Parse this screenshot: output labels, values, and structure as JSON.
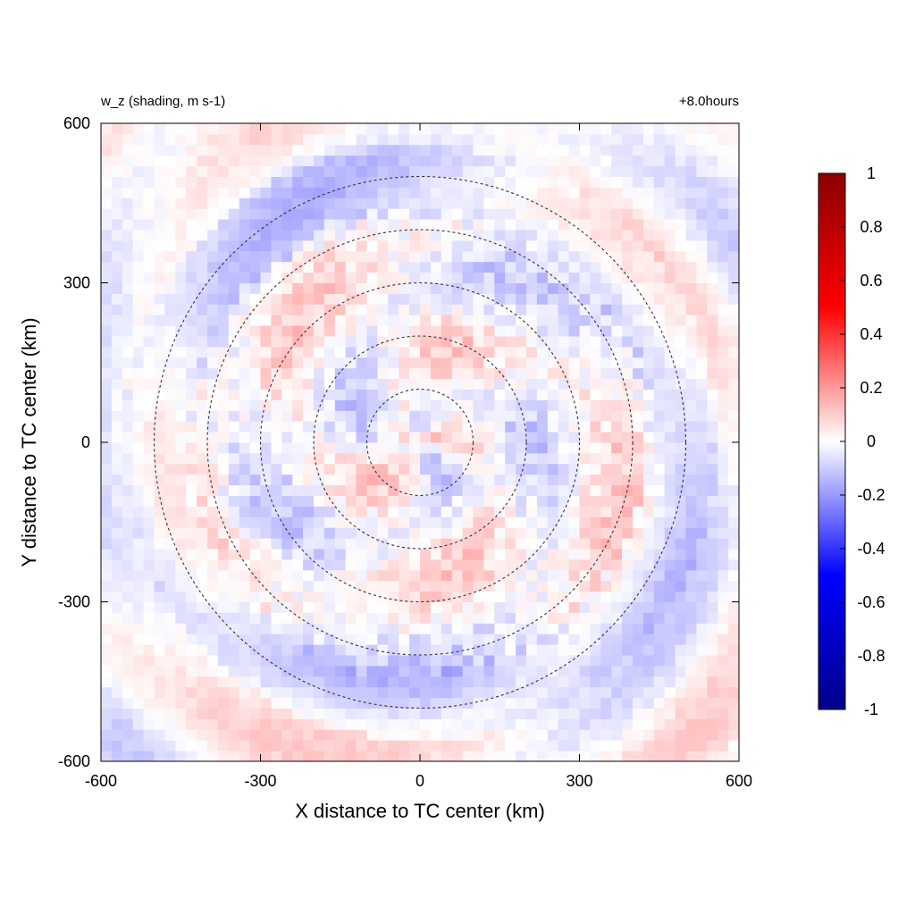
{
  "chart_data": {
    "type": "heatmap",
    "title_left": "w_z (shading, m s-1)",
    "title_right": "+8.0hours",
    "xlabel": "X distance to TC center (km)",
    "ylabel": "Y distance to TC center (km)",
    "xlim": [
      -600,
      600
    ],
    "ylim": [
      -600,
      600
    ],
    "xticks": [
      -600,
      -300,
      0,
      300,
      600
    ],
    "yticks": [
      -600,
      -300,
      0,
      300,
      600
    ],
    "colorbar": {
      "range": [
        -1,
        1
      ],
      "ticks": [
        1,
        0.8,
        0.6,
        0.4,
        0.2,
        0,
        -0.2,
        -0.4,
        -0.6,
        -0.8,
        -1
      ],
      "colors": {
        "min": "#00008b",
        "low": "#0000ff",
        "mid": "#ffffff",
        "high": "#ff0000",
        "max": "#8b0000"
      }
    },
    "range_rings_km": [
      100,
      200,
      300,
      400,
      500
    ],
    "field_description_values": "weak perturbations mostly within -0.2 to 0.2 m s-1, alternating positive and negative bands around the center"
  }
}
